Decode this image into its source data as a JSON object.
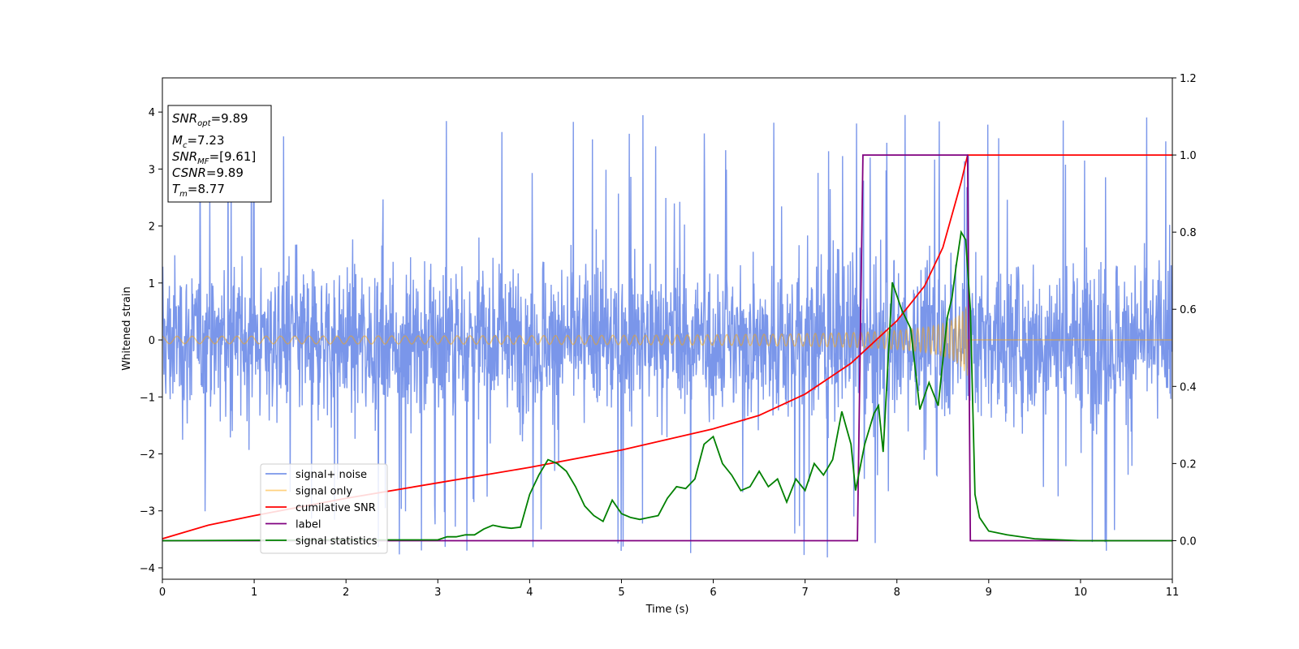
{
  "chart_data": {
    "type": "line",
    "xlabel": "Time (s)",
    "ylabel": "Whitened strain",
    "xlim": [
      0,
      11
    ],
    "ylim_left": [
      -4.2,
      4.6
    ],
    "ylim_right": [
      -0.1,
      1.2
    ],
    "x_ticks": [
      "0",
      "1",
      "2",
      "3",
      "4",
      "5",
      "6",
      "7",
      "8",
      "9",
      "10",
      "11"
    ],
    "y_ticks_left": [
      "−4",
      "−3",
      "−2",
      "−1",
      "0",
      "1",
      "2",
      "3",
      "4"
    ],
    "y_ticks_right": [
      "0.0",
      "0.2",
      "0.4",
      "0.6",
      "0.8",
      "1.0",
      "1.2"
    ],
    "legend_position": "lower-left",
    "info_box": {
      "snr_opt": "=9.89",
      "mc": "=7.23",
      "snr_mf": "=[9.61]",
      "csnr": "=9.89",
      "tm": "=8.77"
    },
    "series": [
      {
        "name": "signal+ noise",
        "color": "#4169e1",
        "axis": "left",
        "description": "whitened noise plus signal, range about -3.6 to 4.0",
        "envelope": {
          "low": -1.9,
          "high": 1.9,
          "spike_low": -3.7,
          "spike_high": 4.05
        }
      },
      {
        "name": "signal only",
        "color": "#ffa500",
        "axis": "left",
        "chirp": {
          "start": 0,
          "merger": 8.77,
          "amp_start": 0.05,
          "amp_end": 0.65
        }
      },
      {
        "name": "cumilative SNR",
        "color": "#ff0000",
        "axis": "right",
        "points": [
          [
            0,
            0.005
          ],
          [
            0.5,
            0.04
          ],
          [
            1,
            0.065
          ],
          [
            2,
            0.11
          ],
          [
            3,
            0.15
          ],
          [
            4,
            0.19
          ],
          [
            5,
            0.235
          ],
          [
            6,
            0.29
          ],
          [
            6.5,
            0.325
          ],
          [
            7,
            0.38
          ],
          [
            7.5,
            0.46
          ],
          [
            8,
            0.57
          ],
          [
            8.3,
            0.66
          ],
          [
            8.5,
            0.76
          ],
          [
            8.7,
            0.93
          ],
          [
            8.77,
            1.0
          ],
          [
            11,
            1.0
          ]
        ]
      },
      {
        "name": "label",
        "color": "#800080",
        "axis": "right",
        "points": [
          [
            0,
            0
          ],
          [
            7.57,
            0
          ],
          [
            7.63,
            1.0
          ],
          [
            8.77,
            1.0
          ],
          [
            8.8,
            0
          ],
          [
            11,
            0
          ]
        ]
      },
      {
        "name": "signal statistics",
        "color": "#008000",
        "axis": "right",
        "points": [
          [
            0,
            0
          ],
          [
            1,
            0.001
          ],
          [
            2,
            0.002
          ],
          [
            3,
            0.002
          ],
          [
            3.1,
            0.01
          ],
          [
            3.2,
            0.01
          ],
          [
            3.3,
            0.015
          ],
          [
            3.4,
            0.015
          ],
          [
            3.5,
            0.03
          ],
          [
            3.6,
            0.04
          ],
          [
            3.7,
            0.035
          ],
          [
            3.8,
            0.032
          ],
          [
            3.9,
            0.035
          ],
          [
            4.0,
            0.12
          ],
          [
            4.1,
            0.17
          ],
          [
            4.2,
            0.21
          ],
          [
            4.3,
            0.2
          ],
          [
            4.4,
            0.18
          ],
          [
            4.5,
            0.14
          ],
          [
            4.6,
            0.09
          ],
          [
            4.7,
            0.065
          ],
          [
            4.8,
            0.05
          ],
          [
            4.9,
            0.105
          ],
          [
            5.0,
            0.07
          ],
          [
            5.1,
            0.06
          ],
          [
            5.2,
            0.055
          ],
          [
            5.3,
            0.06
          ],
          [
            5.4,
            0.065
          ],
          [
            5.5,
            0.11
          ],
          [
            5.6,
            0.14
          ],
          [
            5.7,
            0.135
          ],
          [
            5.8,
            0.16
          ],
          [
            5.9,
            0.25
          ],
          [
            6.0,
            0.27
          ],
          [
            6.1,
            0.2
          ],
          [
            6.2,
            0.17
          ],
          [
            6.3,
            0.13
          ],
          [
            6.4,
            0.14
          ],
          [
            6.5,
            0.18
          ],
          [
            6.6,
            0.14
          ],
          [
            6.7,
            0.16
          ],
          [
            6.8,
            0.1
          ],
          [
            6.9,
            0.16
          ],
          [
            7.0,
            0.13
          ],
          [
            7.1,
            0.2
          ],
          [
            7.2,
            0.17
          ],
          [
            7.3,
            0.21
          ],
          [
            7.4,
            0.335
          ],
          [
            7.5,
            0.25
          ],
          [
            7.55,
            0.13
          ],
          [
            7.65,
            0.25
          ],
          [
            7.75,
            0.33
          ],
          [
            7.8,
            0.35
          ],
          [
            7.85,
            0.23
          ],
          [
            7.95,
            0.67
          ],
          [
            8.05,
            0.6
          ],
          [
            8.15,
            0.55
          ],
          [
            8.25,
            0.34
          ],
          [
            8.35,
            0.41
          ],
          [
            8.45,
            0.35
          ],
          [
            8.55,
            0.58
          ],
          [
            8.6,
            0.63
          ],
          [
            8.65,
            0.72
          ],
          [
            8.7,
            0.8
          ],
          [
            8.75,
            0.78
          ],
          [
            8.8,
            0.6
          ],
          [
            8.85,
            0.12
          ],
          [
            8.9,
            0.06
          ],
          [
            9.0,
            0.025
          ],
          [
            9.2,
            0.015
          ],
          [
            9.5,
            0.005
          ],
          [
            10,
            0.0
          ],
          [
            11,
            0.0
          ]
        ]
      }
    ]
  }
}
